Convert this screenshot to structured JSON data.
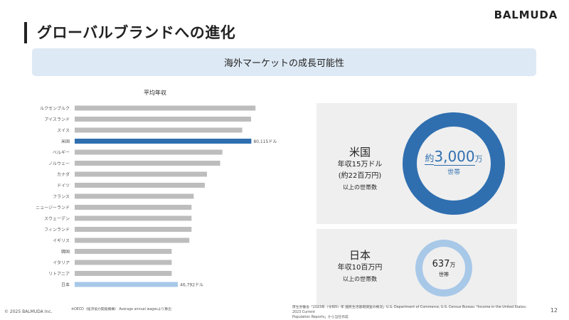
{
  "header": {
    "title": "グローバルブランドへの進化",
    "logo": "BALMUDA",
    "subtitle": "海外マーケットの成長可能性"
  },
  "chart_data": {
    "type": "bar",
    "orientation": "horizontal",
    "title": "平均年収",
    "categories": [
      "ルクセンブルク",
      "アイスランド",
      "スイス",
      "米国",
      "ベルギー",
      "ノルウェー",
      "カナダ",
      "ドイツ",
      "フランス",
      "ニュージーランド",
      "スウェーデン",
      "フィンランド",
      "イギリス",
      "韓国",
      "イタリア",
      "リトアニア",
      "日本"
    ],
    "values": [
      82000,
      80000,
      76000,
      80115,
      67000,
      66000,
      60000,
      59000,
      54000,
      53000,
      53000,
      53000,
      52000,
      44000,
      44000,
      44000,
      46792
    ],
    "highlight": {
      "米国": "#2f6fb0",
      "日本": "#a8c8e8"
    },
    "default_color": "#bdbdbd",
    "xlim": [
      0,
      100000
    ],
    "data_labels": {
      "米国": "80,115ドル",
      "日本": "46,792ドル"
    }
  },
  "us_panel": {
    "name": "米国",
    "line1": "年収15万ドル",
    "line2": "(約22百万円)",
    "line3": "以上の世帯数",
    "value_prefix": "約",
    "value_number": "3,000",
    "value_unit": "万",
    "value_sub": "世帯",
    "color": "#2f6fb0"
  },
  "jp_panel": {
    "name": "日本",
    "line1": "年収10百万円",
    "line2": "以上の世帯数",
    "value_number": "637",
    "value_unit": "万",
    "value_sub": "世帯",
    "color": "#a8c8e8"
  },
  "footnotes": {
    "left": "※OECD（経済協力開発機構） Average annual wagesより算出",
    "right_1": "厚生労働省「2023年（令和5）年 国民生活基礎調査の概況」U.S. Department of Commerce, U.S. Census Bureau「Income in the United States: 2023 Current",
    "right_2": "Population Reports」から当社作成"
  },
  "footer": {
    "copyright": "© 2025 BALMUDA Inc.",
    "page": "12"
  }
}
